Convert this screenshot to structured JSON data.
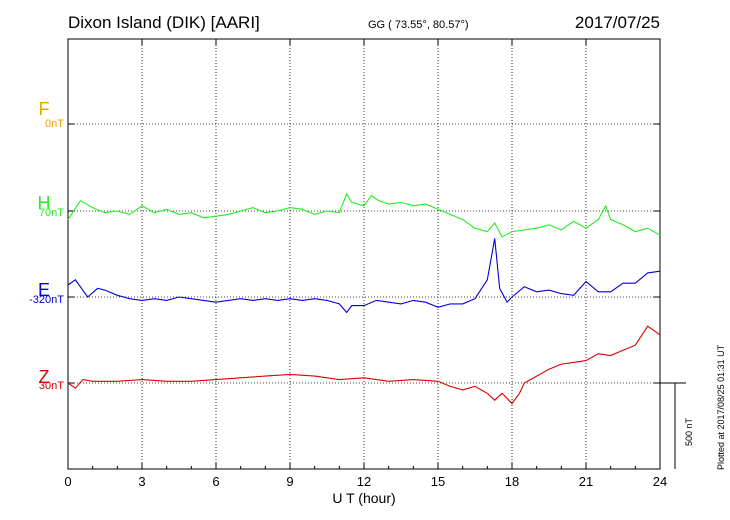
{
  "header": {
    "station": "Dixon Island (DIK)  [AARI]",
    "coords": "GG ( 73.55°,  80.57°)",
    "date": "2017/07/25"
  },
  "footer": {
    "plotted": "Plotted at 2017/08/25 01:31  UT"
  },
  "chart_data": {
    "type": "line",
    "title": "Dixon Island (DIK)  [AARI]",
    "xlabel": "U T (hour)",
    "ylabel": "",
    "xlim": [
      0,
      24
    ],
    "x_ticks": [
      "0",
      "3",
      "6",
      "9",
      "12",
      "15",
      "18",
      "21",
      "24"
    ],
    "grid": true,
    "scale_bar": "500 nT",
    "components": [
      {
        "name": "F",
        "baseline": "0nT",
        "color": "#f0a000"
      },
      {
        "name": "H",
        "baseline": "70nT",
        "color": "#22ee22"
      },
      {
        "name": "E",
        "baseline": "-320nT",
        "color": "#0000dd"
      },
      {
        "name": "Z",
        "baseline": "30nT",
        "color": "#dd0000"
      }
    ],
    "series": [
      {
        "name": "H",
        "color": "#22ee22",
        "points": [
          [
            0,
            -50
          ],
          [
            0.5,
            60
          ],
          [
            1,
            20
          ],
          [
            1.5,
            -10
          ],
          [
            2,
            0
          ],
          [
            2.5,
            -20
          ],
          [
            3,
            30
          ],
          [
            3.5,
            -10
          ],
          [
            4,
            10
          ],
          [
            4.5,
            -20
          ],
          [
            5,
            -10
          ],
          [
            5.5,
            -40
          ],
          [
            6,
            -30
          ],
          [
            6.5,
            -20
          ],
          [
            7,
            0
          ],
          [
            7.5,
            20
          ],
          [
            8,
            -10
          ],
          [
            8.5,
            0
          ],
          [
            9,
            20
          ],
          [
            9.5,
            10
          ],
          [
            10,
            -20
          ],
          [
            10.5,
            0
          ],
          [
            11,
            -10
          ],
          [
            11.3,
            100
          ],
          [
            11.5,
            50
          ],
          [
            12,
            30
          ],
          [
            12.3,
            90
          ],
          [
            12.6,
            60
          ],
          [
            13,
            40
          ],
          [
            13.5,
            50
          ],
          [
            14,
            30
          ],
          [
            14.5,
            40
          ],
          [
            15,
            10
          ],
          [
            15.5,
            -20
          ],
          [
            16,
            -50
          ],
          [
            16.5,
            -100
          ],
          [
            17,
            -120
          ],
          [
            17.3,
            -70
          ],
          [
            17.6,
            -150
          ],
          [
            18,
            -120
          ],
          [
            18.5,
            -110
          ],
          [
            19,
            -100
          ],
          [
            19.5,
            -80
          ],
          [
            20,
            -110
          ],
          [
            20.5,
            -60
          ],
          [
            21,
            -100
          ],
          [
            21.5,
            -50
          ],
          [
            21.8,
            30
          ],
          [
            22,
            -50
          ],
          [
            22.5,
            -80
          ],
          [
            23,
            -120
          ],
          [
            23.5,
            -100
          ],
          [
            24,
            -140
          ]
        ]
      },
      {
        "name": "E",
        "color": "#0000dd",
        "points": [
          [
            0,
            70
          ],
          [
            0.3,
            100
          ],
          [
            0.8,
            0
          ],
          [
            1.2,
            50
          ],
          [
            1.5,
            40
          ],
          [
            2,
            10
          ],
          [
            2.5,
            -10
          ],
          [
            3,
            -20
          ],
          [
            3.5,
            -10
          ],
          [
            4,
            -20
          ],
          [
            4.5,
            0
          ],
          [
            5,
            -10
          ],
          [
            5.5,
            -20
          ],
          [
            6,
            -30
          ],
          [
            7,
            -10
          ],
          [
            7.5,
            -20
          ],
          [
            8,
            -10
          ],
          [
            8.5,
            -20
          ],
          [
            9,
            -10
          ],
          [
            9.5,
            -20
          ],
          [
            10,
            -10
          ],
          [
            10.5,
            -20
          ],
          [
            11,
            -40
          ],
          [
            11.3,
            -90
          ],
          [
            11.5,
            -50
          ],
          [
            12,
            -50
          ],
          [
            12.5,
            -20
          ],
          [
            13,
            -30
          ],
          [
            13.5,
            -40
          ],
          [
            14,
            -20
          ],
          [
            14.5,
            -30
          ],
          [
            15,
            -60
          ],
          [
            15.5,
            -40
          ],
          [
            16,
            -40
          ],
          [
            16.5,
            -10
          ],
          [
            17,
            100
          ],
          [
            17.3,
            340
          ],
          [
            17.5,
            50
          ],
          [
            17.8,
            -30
          ],
          [
            18,
            0
          ],
          [
            18.5,
            60
          ],
          [
            19,
            30
          ],
          [
            19.5,
            40
          ],
          [
            20,
            20
          ],
          [
            20.5,
            10
          ],
          [
            21,
            90
          ],
          [
            21.5,
            30
          ],
          [
            22,
            30
          ],
          [
            22.5,
            80
          ],
          [
            23,
            80
          ],
          [
            23.5,
            140
          ],
          [
            24,
            150
          ]
        ]
      },
      {
        "name": "Z",
        "color": "#dd0000",
        "points": [
          [
            0,
            0
          ],
          [
            0.3,
            -30
          ],
          [
            0.6,
            20
          ],
          [
            1,
            10
          ],
          [
            2,
            10
          ],
          [
            3,
            20
          ],
          [
            4,
            10
          ],
          [
            5,
            10
          ],
          [
            6,
            20
          ],
          [
            7,
            30
          ],
          [
            8,
            40
          ],
          [
            9,
            50
          ],
          [
            10,
            40
          ],
          [
            11,
            20
          ],
          [
            12,
            30
          ],
          [
            13,
            10
          ],
          [
            14,
            20
          ],
          [
            15,
            10
          ],
          [
            15.5,
            -20
          ],
          [
            16,
            -40
          ],
          [
            16.5,
            -20
          ],
          [
            17,
            -60
          ],
          [
            17.3,
            -100
          ],
          [
            17.6,
            -60
          ],
          [
            18,
            -120
          ],
          [
            18.3,
            -60
          ],
          [
            18.5,
            0
          ],
          [
            19,
            40
          ],
          [
            19.5,
            80
          ],
          [
            20,
            110
          ],
          [
            20.5,
            120
          ],
          [
            21,
            130
          ],
          [
            21.5,
            170
          ],
          [
            22,
            160
          ],
          [
            22.5,
            190
          ],
          [
            23,
            220
          ],
          [
            23.5,
            330
          ],
          [
            24,
            280
          ]
        ]
      }
    ]
  }
}
